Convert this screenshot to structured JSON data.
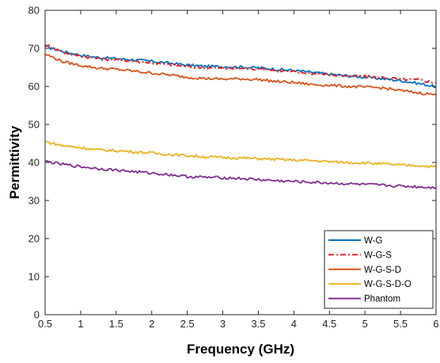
{
  "chart_data": {
    "type": "line",
    "xlabel": "Frequency (GHz)",
    "ylabel": "Permittivity",
    "xlim": [
      0.5,
      6
    ],
    "ylim": [
      0,
      80
    ],
    "xticks": [
      0.5,
      1,
      1.5,
      2,
      2.5,
      3,
      3.5,
      4,
      4.5,
      5,
      5.5,
      6
    ],
    "xtick_labels": [
      "0.5",
      "1",
      "1.5",
      "2",
      "2.5",
      "3",
      "3.5",
      "4",
      "4.5",
      "5",
      "5.5",
      "6"
    ],
    "yticks": [
      0,
      10,
      20,
      30,
      40,
      50,
      60,
      70,
      80
    ],
    "ytick_labels": [
      "0",
      "10",
      "20",
      "30",
      "40",
      "50",
      "60",
      "70",
      "80"
    ],
    "grid": false,
    "legend_position": "bottom-right",
    "series": [
      {
        "name": "W-G",
        "color": "#0072BD",
        "dash": "solid",
        "x": [
          0.5,
          0.75,
          1,
          1.25,
          1.5,
          1.75,
          2,
          2.25,
          2.5,
          2.75,
          3,
          3.25,
          3.5,
          3.75,
          4,
          4.25,
          4.5,
          4.75,
          5,
          5.25,
          5.5,
          5.75,
          6
        ],
        "values": [
          70.5,
          69.2,
          68.2,
          67.6,
          67.3,
          67.0,
          66.6,
          66.1,
          65.6,
          65.3,
          65.2,
          65.1,
          64.9,
          64.5,
          64.2,
          63.7,
          63.2,
          62.8,
          62.4,
          62.0,
          61.5,
          60.8,
          59.9
        ]
      },
      {
        "name": "W-G-S",
        "color": "#E8212B",
        "dash": "dashdot",
        "x": [
          0.5,
          0.75,
          1,
          1.25,
          1.5,
          1.75,
          2,
          2.25,
          2.5,
          2.75,
          3,
          3.25,
          3.5,
          3.75,
          4,
          4.25,
          4.5,
          4.75,
          5,
          5.25,
          5.5,
          5.75,
          6
        ],
        "values": [
          71.0,
          69.0,
          68.0,
          67.3,
          67.0,
          66.6,
          66.2,
          65.7,
          65.2,
          64.9,
          64.7,
          64.7,
          64.6,
          64.2,
          63.8,
          63.4,
          63.1,
          62.7,
          62.6,
          62.3,
          61.9,
          61.7,
          61.0
        ]
      },
      {
        "name": "W-G-S-D",
        "color": "#D95319",
        "dash": "solid",
        "x": [
          0.5,
          0.75,
          1,
          1.25,
          1.5,
          1.75,
          2,
          2.25,
          2.5,
          2.75,
          3,
          3.25,
          3.5,
          3.75,
          4,
          4.25,
          4.5,
          4.75,
          5,
          5.25,
          5.5,
          5.75,
          6
        ],
        "values": [
          68.5,
          66.5,
          65.5,
          64.8,
          64.5,
          64.0,
          63.5,
          63.0,
          62.4,
          62.1,
          61.9,
          62.0,
          61.8,
          61.3,
          61.0,
          60.5,
          60.3,
          60.0,
          59.8,
          59.6,
          58.9,
          58.3,
          57.8
        ]
      },
      {
        "name": "W-G-S-D-O",
        "color": "#EDB120",
        "dash": "solid",
        "x": [
          0.5,
          0.75,
          1,
          1.25,
          1.5,
          1.75,
          2,
          2.25,
          2.5,
          2.75,
          3,
          3.25,
          3.5,
          3.75,
          4,
          4.25,
          4.5,
          4.75,
          5,
          5.25,
          5.5,
          5.75,
          6
        ],
        "values": [
          45.5,
          44.4,
          43.9,
          43.3,
          43.1,
          42.8,
          42.5,
          42.1,
          41.8,
          41.5,
          41.3,
          41.2,
          41.0,
          40.8,
          40.6,
          40.5,
          40.2,
          40.0,
          39.9,
          39.6,
          39.3,
          39.2,
          38.8
        ]
      },
      {
        "name": "Phantom",
        "color": "#7E2F8E",
        "dash": "solid",
        "x": [
          0.5,
          0.75,
          1,
          1.25,
          1.5,
          1.75,
          2,
          2.25,
          2.5,
          2.75,
          3,
          3.25,
          3.5,
          3.75,
          4,
          4.25,
          4.5,
          4.75,
          5,
          5.25,
          5.5,
          5.75,
          6
        ],
        "values": [
          40.3,
          39.5,
          38.9,
          38.4,
          38.0,
          37.6,
          37.2,
          36.8,
          36.3,
          36.1,
          36.0,
          35.8,
          35.5,
          35.2,
          35.0,
          34.8,
          34.6,
          34.4,
          34.2,
          34.0,
          33.8,
          33.6,
          33.4
        ]
      }
    ]
  }
}
